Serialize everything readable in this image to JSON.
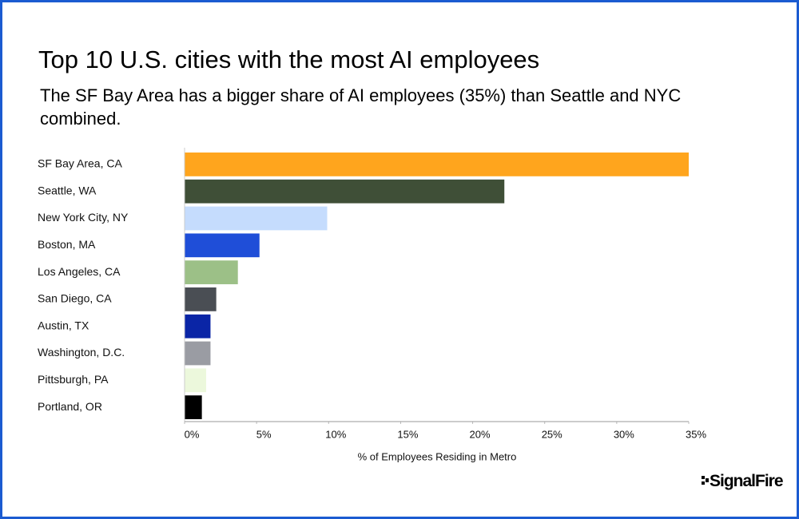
{
  "chart_data": {
    "type": "barh",
    "title": "Top 10 U.S. cities with the most AI employees",
    "subtitle": "The SF Bay Area has a bigger share of AI employees (35%) than Seattle and NYC combined.",
    "x_label": "% of Employees Residing in Metro",
    "categories": [
      "SF Bay Area, CA",
      "Seattle, WA",
      "New York City, NY",
      "Boston, MA",
      "Los Angeles, CA",
      "San Diego, CA",
      "Austin, TX",
      "Washington, D.C.",
      "Pittsburgh, PA",
      "Portland, OR"
    ],
    "values": [
      35,
      22.2,
      9.9,
      5.2,
      3.7,
      2.2,
      1.8,
      1.8,
      1.5,
      1.2
    ],
    "colors": [
      "#ffa51d",
      "#3f4f37",
      "#c5dcfd",
      "#1f4ed8",
      "#9cc087",
      "#4a4e54",
      "#0a25a6",
      "#9a9ca3",
      "#ecf8dc",
      "#000000"
    ],
    "xlim": [
      0,
      35
    ],
    "xticks": [
      {
        "value": 0,
        "label": "0%"
      },
      {
        "value": 5,
        "label": "5%"
      },
      {
        "value": 10,
        "label": "10%"
      },
      {
        "value": 15,
        "label": "15%"
      },
      {
        "value": 20,
        "label": "20%"
      },
      {
        "value": 25,
        "label": "25%"
      },
      {
        "value": 30,
        "label": "30%"
      },
      {
        "value": 35,
        "label": "35%"
      }
    ],
    "grid": false
  },
  "logo": "SignalFire"
}
